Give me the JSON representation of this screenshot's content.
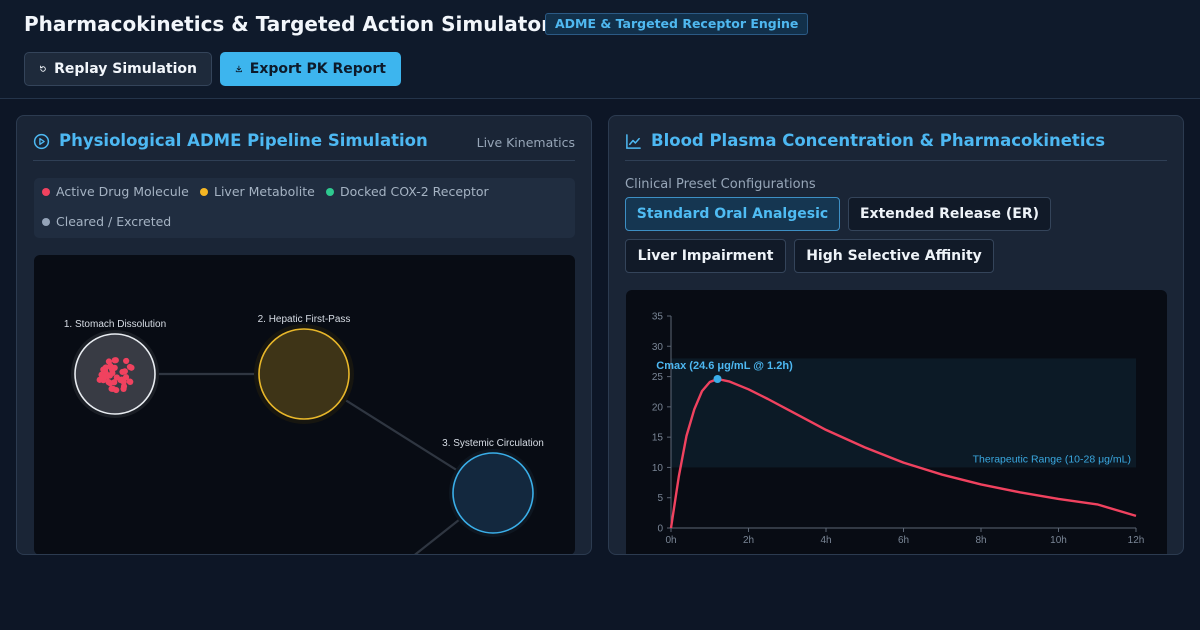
{
  "header": {
    "title": "Pharmacokinetics & Targeted Action Simulator",
    "badge": "ADME & Targeted Receptor Engine",
    "replay_label": "Replay Simulation",
    "export_label": "Export PK Report"
  },
  "left_panel": {
    "title": "Physiological ADME Pipeline Simulation",
    "subtitle": "Live Kinematics",
    "legend": [
      {
        "label": "Active Drug Molecule",
        "color": "#f0425f"
      },
      {
        "label": "Liver Metabolite",
        "color": "#f5b623"
      },
      {
        "label": "Docked COX-2 Receptor",
        "color": "#2ec98f"
      },
      {
        "label": "Cleared / Excreted",
        "color": "#94a3b8"
      }
    ],
    "stages": [
      {
        "label": "1. Stomach Dissolution"
      },
      {
        "label": "2. Hepatic First-Pass"
      },
      {
        "label": "3. Systemic Circulation"
      }
    ]
  },
  "right_panel": {
    "title": "Blood Plasma Concentration & Pharmacokinetics",
    "preset_label": "Clinical Preset Configurations",
    "presets": [
      {
        "label": "Standard Oral Analgesic",
        "active": true
      },
      {
        "label": "Extended Release (ER)",
        "active": false
      },
      {
        "label": "Liver Impairment",
        "active": false
      },
      {
        "label": "High Selective Affinity",
        "active": false
      }
    ]
  },
  "chart_data": {
    "type": "line",
    "title": "",
    "xlabel": "",
    "ylabel": "",
    "xlim": [
      0,
      12
    ],
    "ylim": [
      0,
      35
    ],
    "x_ticks": [
      "0h",
      "2h",
      "4h",
      "6h",
      "8h",
      "10h",
      "12h"
    ],
    "y_ticks": [
      0,
      5,
      10,
      15,
      20,
      25,
      30,
      35
    ],
    "therapeutic_range": {
      "low": 10,
      "high": 28,
      "label": "Therapeutic Range (10-28 μg/mL)"
    },
    "cmax": {
      "x": 1.2,
      "y": 24.6,
      "label": "Cmax (24.6 μg/mL @ 1.2h)"
    },
    "series": [
      {
        "color": "#f0425f",
        "points": [
          [
            0,
            0
          ],
          [
            0.2,
            8.5
          ],
          [
            0.4,
            15.2
          ],
          [
            0.6,
            19.6
          ],
          [
            0.8,
            22.6
          ],
          [
            1.0,
            24.1
          ],
          [
            1.2,
            24.6
          ],
          [
            1.5,
            24.2
          ],
          [
            2,
            22.9
          ],
          [
            2.5,
            21.3
          ],
          [
            3,
            19.6
          ],
          [
            3.5,
            17.9
          ],
          [
            4,
            16.2
          ],
          [
            5,
            13.3
          ],
          [
            6,
            10.8
          ],
          [
            7,
            8.8
          ],
          [
            8,
            7.2
          ],
          [
            9,
            5.9
          ],
          [
            10,
            4.8
          ],
          [
            11,
            3.9
          ],
          [
            12,
            2.0
          ]
        ]
      }
    ]
  }
}
